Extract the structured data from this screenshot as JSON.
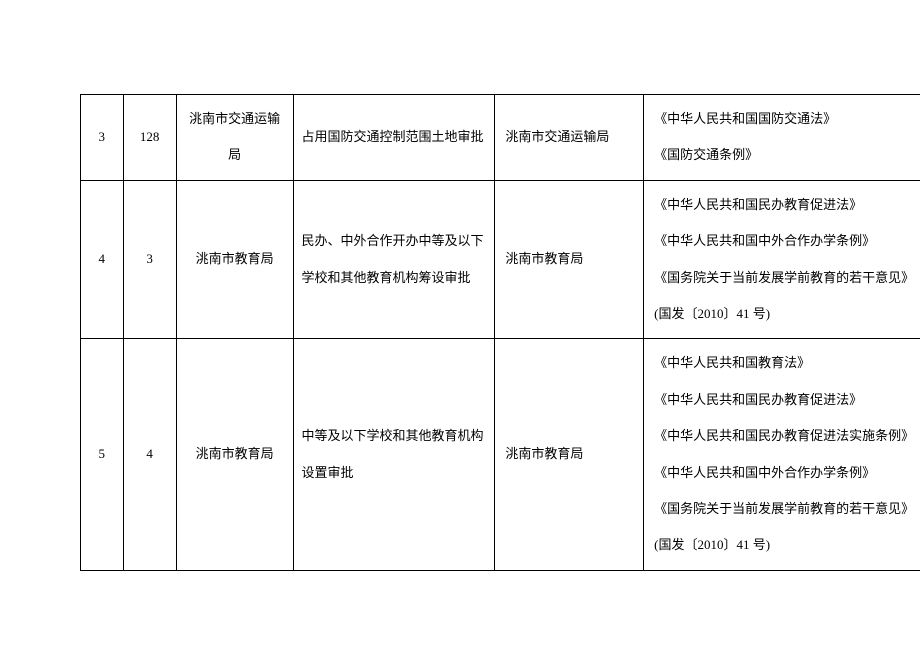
{
  "table": {
    "rows": [
      {
        "idx": "3",
        "code": "128",
        "dept": "洮南市交通运输局",
        "item": "占用国防交通控制范围土地审批",
        "impl": "洮南市交通运输局",
        "basis": [
          "《中华人民共和国国防交通法》",
          "《国防交通条例》"
        ]
      },
      {
        "idx": "4",
        "code": "3",
        "dept": "洮南市教育局",
        "item": "民办、中外合作开办中等及以下学校和其他教育机构筹设审批",
        "impl": "洮南市教育局",
        "basis": [
          "《中华人民共和国民办教育促进法》",
          "《中华人民共和国中外合作办学条例》",
          "《国务院关于当前发展学前教育的若干意见》(国发〔2010〕41 号)"
        ]
      },
      {
        "idx": "5",
        "code": "4",
        "dept": "洮南市教育局",
        "item": "中等及以下学校和其他教育机构设置审批",
        "impl": "洮南市教育局",
        "basis": [
          "《中华人民共和国教育法》",
          "《中华人民共和国民办教育促进法》",
          "《中华人民共和国民办教育促进法实施条例》",
          "《中华人民共和国中外合作办学条例》",
          "《国务院关于当前发展学前教育的若干意见》(国发〔2010〕41 号)"
        ]
      }
    ]
  }
}
